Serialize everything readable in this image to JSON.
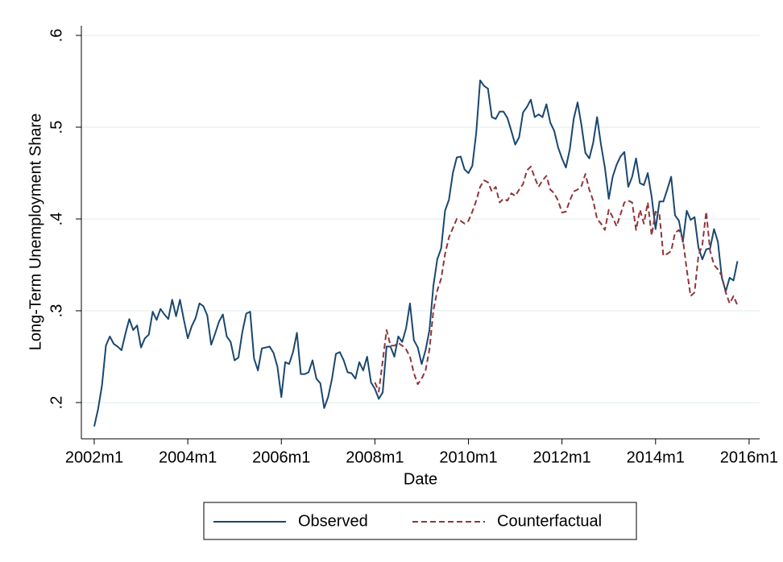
{
  "chart_data": {
    "type": "line",
    "x_label": "Date",
    "y_label": "Long-Term Unemployment Share",
    "x": [
      504,
      505,
      506,
      507,
      508,
      509,
      510,
      511,
      512,
      513,
      514,
      515,
      516,
      517,
      518,
      519,
      520,
      521,
      522,
      523,
      524,
      525,
      526,
      527,
      528,
      529,
      530,
      531,
      532,
      533,
      534,
      535,
      536,
      537,
      538,
      539,
      540,
      541,
      542,
      543,
      544,
      545,
      546,
      547,
      548,
      549,
      550,
      551,
      552,
      553,
      554,
      555,
      556,
      557,
      558,
      559,
      560,
      561,
      562,
      563,
      564,
      565,
      566,
      567,
      568,
      569,
      570,
      571,
      572,
      573,
      574,
      575,
      576,
      577,
      578,
      579,
      580,
      581,
      582,
      583,
      584,
      585,
      586,
      587,
      588,
      589,
      590,
      591,
      592,
      593,
      594,
      595,
      596,
      597,
      598,
      599,
      600,
      601,
      602,
      603,
      604,
      605,
      606,
      607,
      608,
      609,
      610,
      611,
      612,
      613,
      614,
      615,
      616,
      617,
      618,
      619,
      620,
      621,
      622,
      623,
      624,
      625,
      626,
      627,
      628,
      629,
      630,
      631,
      632,
      633,
      634,
      635,
      636,
      637,
      638,
      639,
      640,
      641,
      642,
      643,
      644,
      645,
      646,
      647,
      648,
      649,
      650,
      651,
      652,
      653,
      654,
      655,
      656,
      657,
      658,
      659,
      660,
      661,
      662,
      663,
      664,
      665,
      666,
      667,
      668,
      669
    ],
    "series": [
      {
        "name": "Observed",
        "color": "#1a476f",
        "dash": false,
        "values": [
          0.174,
          0.193,
          0.219,
          0.262,
          0.272,
          0.264,
          0.261,
          0.257,
          0.275,
          0.291,
          0.279,
          0.284,
          0.26,
          0.27,
          0.274,
          0.299,
          0.29,
          0.302,
          0.296,
          0.291,
          0.312,
          0.294,
          0.312,
          0.29,
          0.27,
          0.283,
          0.292,
          0.308,
          0.305,
          0.295,
          0.263,
          0.275,
          0.288,
          0.296,
          0.272,
          0.266,
          0.246,
          0.249,
          0.277,
          0.297,
          0.299,
          0.248,
          0.235,
          0.259,
          0.26,
          0.261,
          0.254,
          0.239,
          0.206,
          0.244,
          0.242,
          0.255,
          0.276,
          0.231,
          0.231,
          0.233,
          0.246,
          0.226,
          0.221,
          0.194,
          0.206,
          0.226,
          0.253,
          0.255,
          0.246,
          0.233,
          0.232,
          0.226,
          0.244,
          0.235,
          0.25,
          0.222,
          0.215,
          0.204,
          0.211,
          0.261,
          0.261,
          0.25,
          0.272,
          0.266,
          0.281,
          0.308,
          0.268,
          0.26,
          0.242,
          0.257,
          0.279,
          0.327,
          0.356,
          0.368,
          0.409,
          0.421,
          0.45,
          0.467,
          0.468,
          0.454,
          0.45,
          0.458,
          0.494,
          0.551,
          0.545,
          0.542,
          0.511,
          0.509,
          0.517,
          0.517,
          0.51,
          0.496,
          0.481,
          0.489,
          0.516,
          0.522,
          0.53,
          0.511,
          0.514,
          0.511,
          0.525,
          0.505,
          0.496,
          0.478,
          0.466,
          0.456,
          0.476,
          0.509,
          0.527,
          0.502,
          0.472,
          0.466,
          0.483,
          0.511,
          0.481,
          0.456,
          0.422,
          0.446,
          0.459,
          0.468,
          0.473,
          0.435,
          0.446,
          0.466,
          0.439,
          0.437,
          0.45,
          0.424,
          0.389,
          0.419,
          0.419,
          0.432,
          0.446,
          0.404,
          0.398,
          0.375,
          0.409,
          0.399,
          0.402,
          0.369,
          0.356,
          0.367,
          0.368,
          0.389,
          0.375,
          0.336,
          0.321,
          0.336,
          0.333,
          0.354
        ]
      },
      {
        "name": "Counterfactual",
        "color": "#90353b",
        "dash": true,
        "values": [
          null,
          null,
          null,
          null,
          null,
          null,
          null,
          null,
          null,
          null,
          null,
          null,
          null,
          null,
          null,
          null,
          null,
          null,
          null,
          null,
          null,
          null,
          null,
          null,
          null,
          null,
          null,
          null,
          null,
          null,
          null,
          null,
          null,
          null,
          null,
          null,
          null,
          null,
          null,
          null,
          null,
          null,
          null,
          null,
          null,
          null,
          null,
          null,
          null,
          null,
          null,
          null,
          null,
          null,
          null,
          null,
          null,
          null,
          null,
          null,
          null,
          null,
          null,
          null,
          null,
          null,
          null,
          null,
          null,
          null,
          null,
          null,
          0.222,
          0.212,
          0.245,
          0.279,
          0.262,
          0.262,
          0.265,
          0.262,
          0.258,
          0.25,
          0.232,
          0.22,
          0.226,
          0.235,
          0.258,
          0.3,
          0.322,
          0.335,
          0.362,
          0.38,
          0.39,
          0.4,
          0.398,
          0.395,
          0.398,
          0.408,
          0.42,
          0.435,
          0.442,
          0.44,
          0.43,
          0.435,
          0.418,
          0.422,
          0.42,
          0.428,
          0.425,
          0.432,
          0.438,
          0.453,
          0.457,
          0.445,
          0.435,
          0.442,
          0.447,
          0.432,
          0.428,
          0.42,
          0.407,
          0.408,
          0.42,
          0.43,
          0.432,
          0.436,
          0.449,
          0.432,
          0.42,
          0.4,
          0.395,
          0.388,
          0.41,
          0.402,
          0.392,
          0.405,
          0.418,
          0.42,
          0.418,
          0.388,
          0.41,
          0.395,
          0.418,
          0.382,
          0.408,
          0.405,
          0.36,
          0.362,
          0.365,
          0.385,
          0.388,
          0.378,
          0.345,
          0.316,
          0.32,
          0.36,
          0.372,
          0.408,
          0.365,
          0.35,
          0.345,
          0.338,
          0.32,
          0.308,
          0.316,
          0.306
        ]
      }
    ],
    "xlim": [
      500.7,
      674.7
    ],
    "xticks": [
      {
        "value": 504,
        "label": "2002m1"
      },
      {
        "value": 528,
        "label": "2004m1"
      },
      {
        "value": 552,
        "label": "2006m1"
      },
      {
        "value": 576,
        "label": "2008m1"
      },
      {
        "value": 600,
        "label": "2010m1"
      },
      {
        "value": 624,
        "label": "2012m1"
      },
      {
        "value": 648,
        "label": "2014m1"
      },
      {
        "value": 672,
        "label": "2016m1"
      }
    ],
    "ylim": [
      0.1605,
      0.6105
    ],
    "yticks": [
      {
        "value": 0.2,
        "label": ".2"
      },
      {
        "value": 0.3,
        "label": ".3"
      },
      {
        "value": 0.4,
        "label": ".4"
      },
      {
        "value": 0.5,
        "label": ".5"
      },
      {
        "value": 0.6,
        "label": ".6"
      }
    ],
    "grid": true,
    "legend": "bottom"
  }
}
